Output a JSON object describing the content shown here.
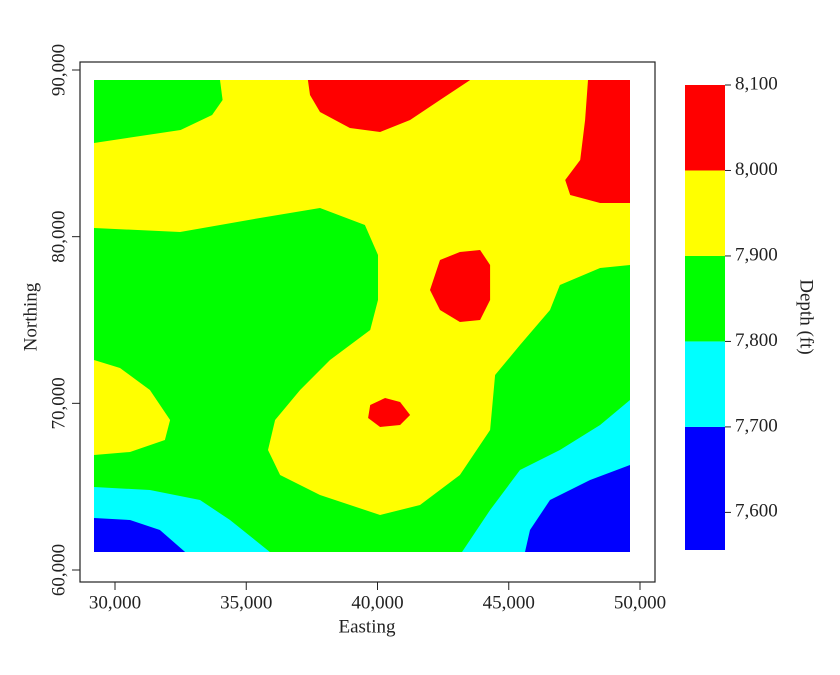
{
  "chart_data": {
    "type": "filled-contour",
    "x_label": "Easting",
    "y_label": "Northing",
    "colorbar_label": "Depth (ft)",
    "xlim": [
      28667,
      50571
    ],
    "ylim": [
      59280,
      90480
    ],
    "xticks": [
      {
        "value": 30000,
        "label": "30,000"
      },
      {
        "value": 35000,
        "label": "35,000"
      },
      {
        "value": 40000,
        "label": "40,000"
      },
      {
        "value": 45000,
        "label": "45,000"
      },
      {
        "value": 50000,
        "label": "50,000"
      }
    ],
    "yticks": [
      {
        "value": 60000,
        "label": "60,000"
      },
      {
        "value": 70000,
        "label": "70,000"
      },
      {
        "value": 80000,
        "label": "80,000"
      },
      {
        "value": 90000,
        "label": "90,000"
      }
    ],
    "levels": [
      7556,
      7700,
      7800,
      7900,
      8000,
      8100
    ],
    "colors": [
      "#0000ff",
      "#00ffff",
      "#00ff00",
      "#ffff00",
      "#ff0000"
    ],
    "clim": [
      7556,
      8100
    ],
    "cticks": [
      {
        "value": 7600,
        "label": "7,600"
      },
      {
        "value": 7700,
        "label": "7,700"
      },
      {
        "value": 7800,
        "label": "7,800"
      },
      {
        "value": 7900,
        "label": "7,900"
      },
      {
        "value": 8000,
        "label": "8,000"
      },
      {
        "value": 8100,
        "label": "8,100"
      }
    ],
    "regions": [
      {
        "level": 3,
        "x": [
          29200,
          49620,
          49620,
          29200
        ],
        "y": [
          89400,
          89400,
          61080,
          61080
        ]
      },
      {
        "level": 2,
        "x": [
          29200,
          34000,
          34100,
          33700,
          32500,
          29200
        ],
        "y": [
          89400,
          89400,
          88200,
          87300,
          86400,
          85620
        ]
      },
      {
        "level": 2,
        "x": [
          29200,
          32480,
          35520,
          37810,
          39520,
          40020,
          40020,
          39720,
          38190,
          37050,
          36100,
          35830,
          36290,
          37810,
          40100,
          41620,
          43140,
          44290,
          44480,
          45430,
          46570,
          46950,
          48480,
          49620,
          49620,
          29200
        ],
        "y": [
          80520,
          80280,
          81120,
          81720,
          80700,
          78900,
          76200,
          74400,
          72600,
          70800,
          69000,
          67200,
          65700,
          64500,
          63300,
          63900,
          65700,
          68400,
          71700,
          73500,
          75600,
          77100,
          78120,
          78300,
          61080,
          61080
        ]
      },
      {
        "level": 3,
        "x": [
          29200,
          30190,
          31330,
          32100,
          31900,
          30570,
          29200
        ],
        "y": [
          72600,
          72120,
          70800,
          69000,
          67800,
          67080,
          66900
        ]
      },
      {
        "level": 1,
        "x": [
          29200,
          31330,
          33240,
          34380,
          35900,
          29200
        ],
        "y": [
          64980,
          64800,
          64200,
          63000,
          61080,
          61080
        ]
      },
      {
        "level": 0,
        "x": [
          29200,
          30570,
          31710,
          32670,
          29200
        ],
        "y": [
          63120,
          63000,
          62400,
          61080,
          61080
        ]
      },
      {
        "level": 1,
        "x": [
          49620,
          48480,
          46950,
          45430,
          44290,
          43220,
          49620
        ],
        "y": [
          70200,
          68700,
          67200,
          66000,
          63600,
          61080,
          61080
        ]
      },
      {
        "level": 0,
        "x": [
          49620,
          48100,
          46570,
          45810,
          45620,
          49620
        ],
        "y": [
          66300,
          65400,
          64200,
          62400,
          61080,
          61080
        ]
      },
      {
        "level": 4,
        "x": [
          37350,
          43530,
          42380,
          41240,
          40100,
          38950,
          37810,
          37430
        ],
        "y": [
          89400,
          89400,
          88200,
          87000,
          86280,
          86520,
          87480,
          88500
        ]
      },
      {
        "level": 4,
        "x": [
          48020,
          49620,
          49620,
          48480,
          47340,
          47150,
          47720,
          47910
        ],
        "y": [
          89400,
          89400,
          82020,
          82020,
          82500,
          83400,
          84600,
          87000
        ]
      },
      {
        "level": 4,
        "x": [
          42380,
          43140,
          43910,
          44290,
          44290,
          43910,
          43140,
          42380,
          42000
        ],
        "y": [
          78600,
          79080,
          79200,
          78300,
          76200,
          75000,
          74880,
          75600,
          76800
        ]
      },
      {
        "level": 4,
        "x": [
          39720,
          40290,
          40860,
          41240,
          40860,
          40100,
          39640
        ],
        "y": [
          69900,
          70320,
          70080,
          69300,
          68700,
          68580,
          69120
        ]
      }
    ]
  }
}
